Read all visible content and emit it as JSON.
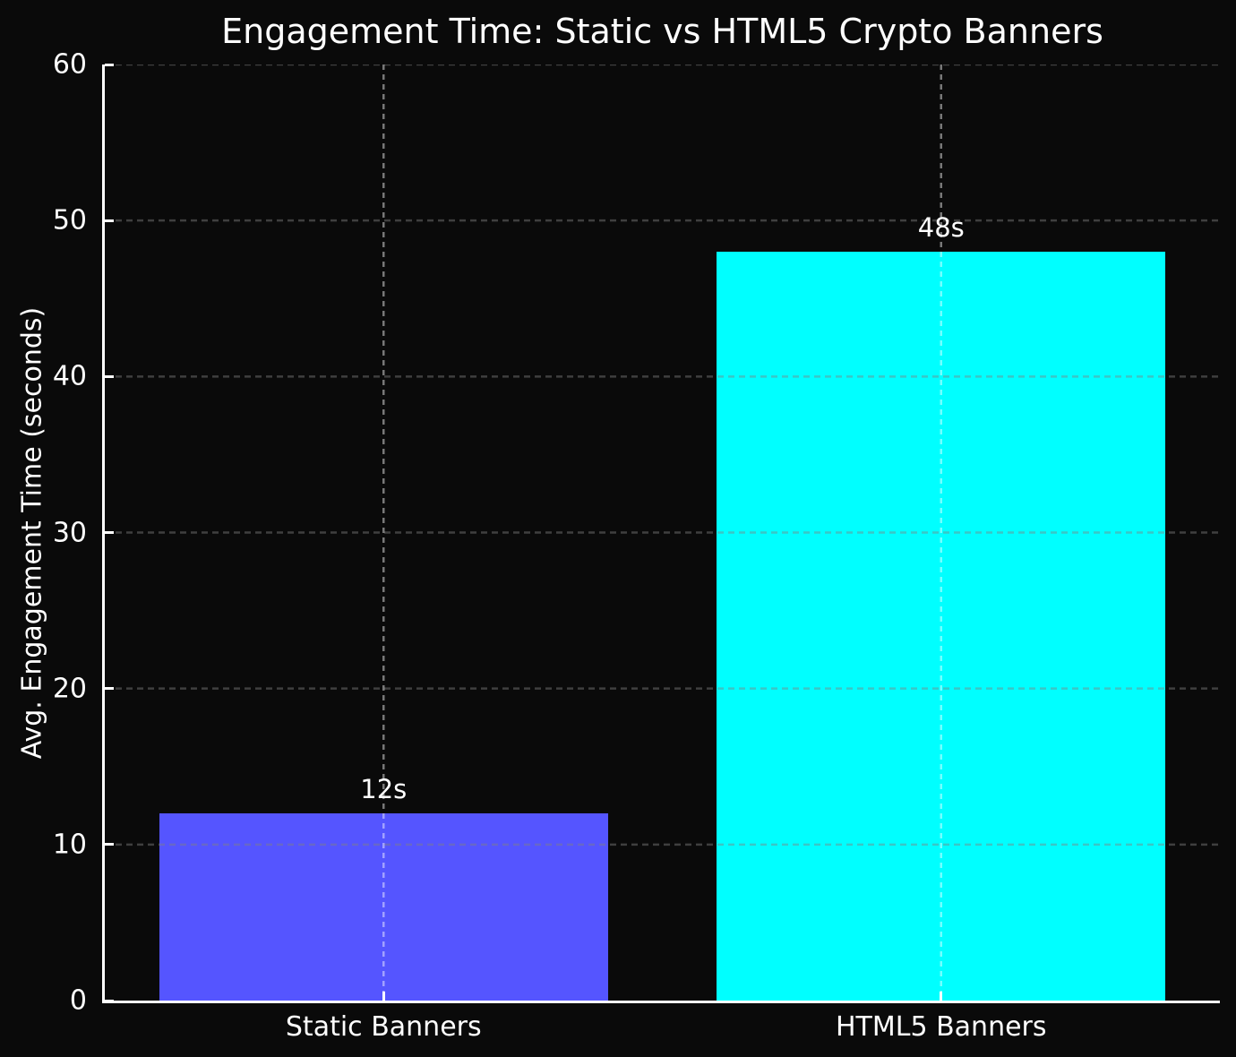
{
  "chart_data": {
    "type": "bar",
    "title": "Engagement Time: Static vs HTML5 Crypto Banners",
    "ylabel": "Avg. Engagement Time (seconds)",
    "xlabel": "",
    "categories": [
      "Static Banners",
      "HTML5 Banners"
    ],
    "values": [
      12,
      48
    ],
    "bar_labels": [
      "12s",
      "48s"
    ],
    "bar_colors": [
      "#5555ff",
      "#00ffff"
    ],
    "ylim": [
      0,
      60
    ],
    "yticks": [
      0,
      10,
      20,
      30,
      40,
      50,
      60
    ],
    "grid": true,
    "legend": "none",
    "colors": {
      "background": "#0a0a0a",
      "text": "#ffffff",
      "spine": "#ffffff",
      "grid_horizontal": "rgba(128,128,128,0.45)",
      "grid_vertical": "rgba(255,255,255,0.45)"
    }
  }
}
